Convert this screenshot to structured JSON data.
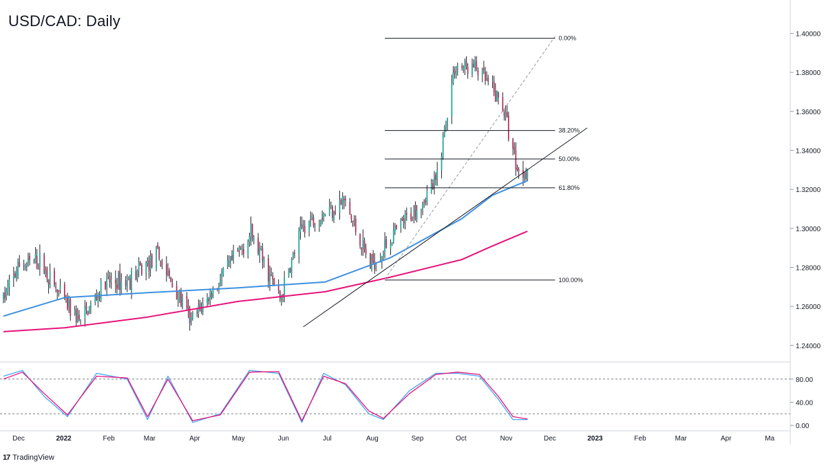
{
  "title": "USD/CAD: Daily",
  "brand": {
    "logo_text": "17",
    "name": "TradingView"
  },
  "colors": {
    "up": "#26a69a",
    "down": "#b2345a",
    "sma_fast": "#3d91e0",
    "sma_slow": "#e6127a",
    "fib": "#131722",
    "stoch_k": "#42a5f5",
    "stoch_d": "#e6127a"
  },
  "chart_data": [
    {
      "type": "candlestick",
      "pair": "USD/CAD",
      "timeframe": "Daily",
      "ylim": [
        1.23,
        1.41
      ],
      "y_ticks": [
        "1.24000",
        "1.26000",
        "1.28000",
        "1.30000",
        "1.32000",
        "1.34000",
        "1.36000",
        "1.38000",
        "1.40000"
      ],
      "x_ticks": [
        "Dec",
        "2022",
        "Feb",
        "Mar",
        "Apr",
        "May",
        "Jun",
        "Jul",
        "Aug",
        "Sep",
        "Oct",
        "Nov",
        "Dec",
        "2023",
        "Feb",
        "Mar",
        "Apr",
        "Ma"
      ],
      "price_anchors": {
        "dates": [
          "2021-11-22",
          "2021-12-03",
          "2021-12-17",
          "2021-12-31",
          "2022-01-14",
          "2022-01-31",
          "2022-02-15",
          "2022-03-08",
          "2022-03-31",
          "2022-04-14",
          "2022-05-11",
          "2022-05-31",
          "2022-06-16",
          "2022-07-14",
          "2022-08-01",
          "2022-08-22",
          "2022-09-15",
          "2022-09-28",
          "2022-10-13",
          "2022-10-31",
          "2022-11-11",
          "2022-11-17"
        ],
        "close": [
          1.264,
          1.281,
          1.283,
          1.265,
          1.252,
          1.272,
          1.273,
          1.286,
          1.252,
          1.267,
          1.297,
          1.264,
          1.302,
          1.314,
          1.281,
          1.301,
          1.323,
          1.383,
          1.382,
          1.363,
          1.328,
          1.331
        ]
      },
      "overlays": [
        {
          "name": "SMA fast",
          "dates": [
            "2021-11-22",
            "2022-01-03",
            "2022-03-01",
            "2022-05-02",
            "2022-07-01",
            "2022-08-15",
            "2022-10-03",
            "2022-10-24",
            "2022-11-17"
          ],
          "values": [
            1.255,
            1.2645,
            1.267,
            1.2695,
            1.2725,
            1.285,
            1.305,
            1.317,
            1.3245
          ]
        },
        {
          "name": "SMA slow",
          "dates": [
            "2021-11-22",
            "2022-01-03",
            "2022-03-01",
            "2022-05-02",
            "2022-07-01",
            "2022-08-15",
            "2022-10-03",
            "2022-10-24",
            "2022-11-17"
          ],
          "values": [
            1.247,
            1.249,
            1.2545,
            1.2625,
            1.2675,
            1.275,
            1.284,
            1.291,
            1.2985
          ]
        }
      ],
      "trendlines": [
        {
          "from": [
            "2022-06-16",
            1.2495
          ],
          "to": [
            "2022-12-28",
            1.3515
          ],
          "style": "solid"
        },
        {
          "from": [
            "2022-08-11",
            1.274
          ],
          "to": [
            "2022-12-06",
            1.3985
          ],
          "style": "dashed"
        }
      ],
      "fibonacci": {
        "start_date": "2022-08-11",
        "end_date": "2022-12-06",
        "levels": [
          {
            "label": "0.00%",
            "price": 1.3975
          },
          {
            "label": "38.20%",
            "price": 1.3502
          },
          {
            "label": "50.00%",
            "price": 1.3356
          },
          {
            "label": "61.80%",
            "price": 1.3208
          },
          {
            "label": "100.00%",
            "price": 1.2735
          }
        ]
      }
    },
    {
      "type": "line",
      "indicator": "Stochastic",
      "ylim": [
        0,
        100
      ],
      "y_ticks": [
        "0.00",
        "40.00",
        "80.00"
      ],
      "bands": [
        20,
        80
      ],
      "series": [
        {
          "key": "k",
          "dates": [
            "2021-11-22",
            "2021-12-05",
            "2021-12-20",
            "2022-01-05",
            "2022-01-25",
            "2022-02-15",
            "2022-03-01",
            "2022-03-15",
            "2022-04-01",
            "2022-04-20",
            "2022-05-10",
            "2022-05-30",
            "2022-06-15",
            "2022-06-30",
            "2022-07-15",
            "2022-07-31",
            "2022-08-10",
            "2022-08-28",
            "2022-09-15",
            "2022-09-30",
            "2022-10-15",
            "2022-10-28",
            "2022-11-07",
            "2022-11-17"
          ],
          "values": [
            85,
            95,
            50,
            15,
            90,
            80,
            10,
            85,
            5,
            20,
            95,
            90,
            5,
            90,
            70,
            20,
            10,
            60,
            90,
            90,
            85,
            45,
            10,
            10
          ]
        },
        {
          "key": "d",
          "dates": [
            "2021-11-22",
            "2021-12-05",
            "2021-12-20",
            "2022-01-05",
            "2022-01-25",
            "2022-02-15",
            "2022-03-01",
            "2022-03-15",
            "2022-04-01",
            "2022-04-20",
            "2022-05-10",
            "2022-05-30",
            "2022-06-15",
            "2022-06-30",
            "2022-07-15",
            "2022-07-31",
            "2022-08-10",
            "2022-08-28",
            "2022-09-15",
            "2022-09-30",
            "2022-10-15",
            "2022-10-28",
            "2022-11-07",
            "2022-11-17"
          ],
          "values": [
            80,
            92,
            55,
            18,
            85,
            82,
            15,
            80,
            8,
            18,
            92,
            93,
            8,
            85,
            72,
            25,
            12,
            55,
            88,
            92,
            88,
            50,
            15,
            11
          ]
        }
      ]
    }
  ]
}
